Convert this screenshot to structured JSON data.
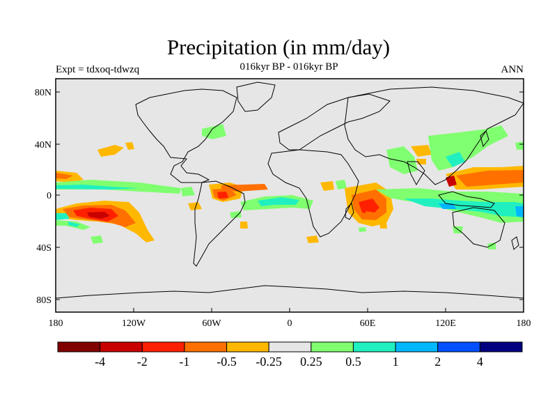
{
  "title": "Precipitation (in mm/day)",
  "subtitle": "016kyr BP - 016kyr BP",
  "left_label": "Expt = tdxoq-tdwzq",
  "right_label": "ANN",
  "map": {
    "ocean_color": "#e6e6e6",
    "lat_ticks": [
      "80N",
      "40N",
      "0",
      "40S",
      "80S"
    ],
    "lon_ticks": [
      "180",
      "120W",
      "60W",
      "0",
      "60E",
      "120E",
      "180"
    ]
  },
  "colorbar": {
    "colors": [
      "#800000",
      "#c80000",
      "#ff2000",
      "#ff7000",
      "#ffb800",
      "#e6e6e6",
      "#80ff70",
      "#20f0c0",
      "#00b8ff",
      "#0050ff",
      "#000080"
    ],
    "labels": [
      "-4",
      "-2",
      "-1",
      "-0.5",
      "-0.25",
      "0.25",
      "0.5",
      "1",
      "2",
      "4"
    ]
  }
}
